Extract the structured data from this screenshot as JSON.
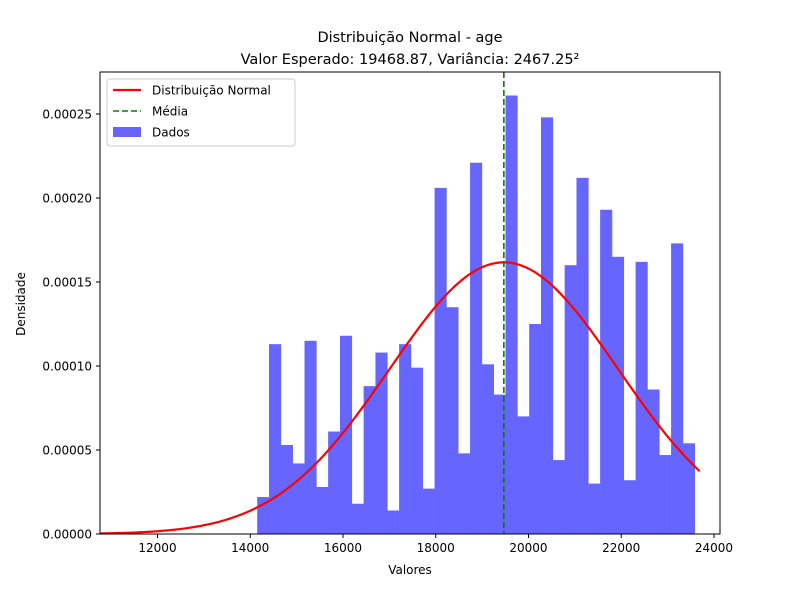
{
  "chart_data": {
    "type": "bar",
    "title": "Distribuição Normal - age",
    "subtitle": "Valor Esperado: 19468.87, Variância: 2467.25²",
    "xlabel": "Valores",
    "ylabel": "Densidade",
    "xlim": [
      10760,
      24130
    ],
    "ylim": [
      0,
      0.000275
    ],
    "xticks": [
      12000,
      14000,
      16000,
      18000,
      20000,
      22000,
      24000
    ],
    "xtick_labels": [
      "12000",
      "14000",
      "16000",
      "18000",
      "20000",
      "22000",
      "24000"
    ],
    "yticks": [
      0,
      5e-05,
      0.0001,
      0.00015,
      0.0002,
      0.00025
    ],
    "ytick_labels": [
      "0.00000",
      "0.00005",
      "0.00010",
      "0.00015",
      "0.00020",
      "0.00025"
    ],
    "grid": false,
    "legend_position": "top-left",
    "histogram": {
      "name": "Dados",
      "color": "#6666ff",
      "bin_start": 14150,
      "bin_width": 255,
      "density": [
        2.2e-05,
        0.000113,
        5.3e-05,
        4.2e-05,
        0.000115,
        2.8e-05,
        6.1e-05,
        0.000118,
        1.8e-05,
        8.8e-05,
        0.000108,
        1.4e-05,
        0.000113,
        9.9e-05,
        2.7e-05,
        0.000206,
        0.000135,
        4.8e-05,
        0.000221,
        0.000101,
        8.3e-05,
        0.000261,
        7e-05,
        0.000125,
        0.000248,
        4.4e-05,
        0.00016,
        0.000212,
        3e-05,
        0.000193,
        0.000165,
        3.2e-05,
        0.000162,
        8.6e-05,
        4.7e-05,
        0.000173,
        5.4e-05
      ]
    },
    "normal_curve": {
      "name": "Distribuição Normal",
      "color": "#ff0000",
      "mean": 19468.87,
      "std": 2467.25,
      "x_range": [
        10760,
        23690
      ]
    },
    "mean_line": {
      "name": "Média",
      "color": "#008000",
      "value": 19468.87
    }
  }
}
